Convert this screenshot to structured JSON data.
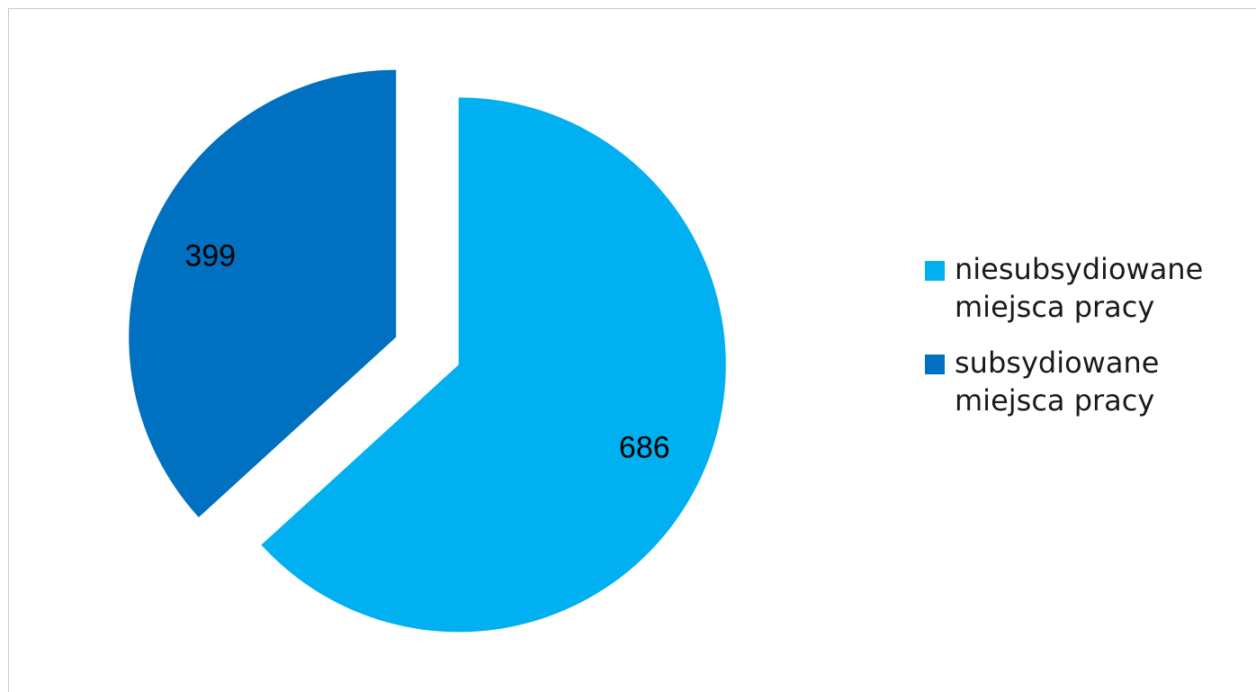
{
  "chart_data": {
    "type": "pie",
    "slices": [
      {
        "label": "niesubsydiowane miejsca pracy",
        "value": 686,
        "color": "#00B0F0",
        "data_label": "686"
      },
      {
        "label": "subsydiowane miejsca pracy",
        "value": 399,
        "color": "#0070C0",
        "data_label": "399"
      }
    ],
    "exploded": true,
    "legend_position": "right"
  }
}
